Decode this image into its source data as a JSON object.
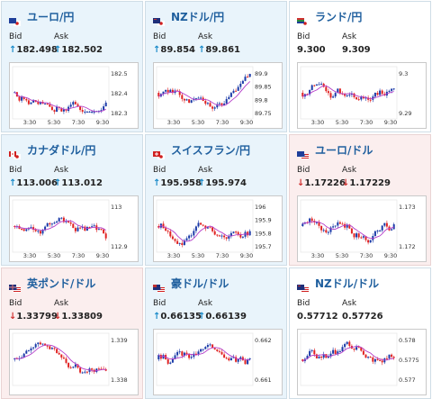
{
  "labels": {
    "bid": "Bid",
    "ask": "Ask"
  },
  "colors": {
    "up_arrow": "#1a8ac9",
    "down_arrow": "#d03030",
    "candle_up": "#1a3aa8",
    "candle_down": "#e02222",
    "ma_line": "#b43cc8",
    "title": "#1f5f9e"
  },
  "cards": [
    {
      "pair": "ユーロ/円",
      "flag": "eu-jp",
      "bid": "182.498",
      "ask": "182.502",
      "bid_dir": "up",
      "ask_dir": "up",
      "bg": "blue",
      "y_ticks": [
        "182.5",
        "182.4",
        "182.3"
      ],
      "x_ticks": [
        "3:30",
        "5:30",
        "7:30",
        "9:30"
      ]
    },
    {
      "pair": "NZドル/円",
      "flag": "nz-jp",
      "bid": "89.854",
      "ask": "89.861",
      "bid_dir": "up",
      "ask_dir": "up",
      "bg": "blue",
      "y_ticks": [
        "89.9",
        "89.85",
        "89.8",
        "89.75"
      ],
      "x_ticks": [
        "3:30",
        "5:30",
        "7:30",
        "9:30"
      ]
    },
    {
      "pair": "ランド/円",
      "flag": "za-jp",
      "bid": "9.300",
      "ask": "9.309",
      "bid_dir": "none",
      "ask_dir": "none",
      "bg": "white",
      "y_ticks": [
        "9.3",
        "9.29"
      ],
      "x_ticks": [
        "3:30",
        "5:30",
        "7:30",
        "9:30"
      ]
    },
    {
      "pair": "カナダドル/円",
      "flag": "ca-jp",
      "bid": "113.006",
      "ask": "113.012",
      "bid_dir": "up",
      "ask_dir": "up",
      "bg": "blue",
      "y_ticks": [
        "113",
        "112.9"
      ],
      "x_ticks": [
        "3:30",
        "5:30",
        "7:30",
        "9:30"
      ]
    },
    {
      "pair": "スイスフラン/円",
      "flag": "ch-jp",
      "bid": "195.958",
      "ask": "195.974",
      "bid_dir": "up",
      "ask_dir": "up",
      "bg": "blue",
      "y_ticks": [
        "196",
        "195.9",
        "195.8",
        "195.7"
      ],
      "x_ticks": [
        "3:30",
        "5:30",
        "7:30",
        "9:30"
      ]
    },
    {
      "pair": "ユーロ/ドル",
      "flag": "eu-us",
      "bid": "1.17226",
      "ask": "1.17229",
      "bid_dir": "down",
      "ask_dir": "down",
      "bg": "pink",
      "y_ticks": [
        "1.173",
        "1.172"
      ],
      "x_ticks": [
        "3:30",
        "5:30",
        "7:30",
        "9:30"
      ]
    },
    {
      "pair": "英ポンド/ドル",
      "flag": "gb-us",
      "bid": "1.33799",
      "ask": "1.33809",
      "bid_dir": "down",
      "ask_dir": "down",
      "bg": "pink",
      "y_ticks": [
        "1.339",
        "1.338"
      ],
      "x_ticks": []
    },
    {
      "pair": "豪ドル/ドル",
      "flag": "au-us",
      "bid": "0.66135",
      "ask": "0.66139",
      "bid_dir": "up",
      "ask_dir": "up",
      "bg": "blue",
      "y_ticks": [
        "0.662",
        "0.661"
      ],
      "x_ticks": []
    },
    {
      "pair": "NZドル/ドル",
      "flag": "nz-us",
      "bid": "0.57712",
      "ask": "0.57726",
      "bid_dir": "none",
      "ask_dir": "none",
      "bg": "white",
      "y_ticks": [
        "0.578",
        "0.5775",
        "0.577"
      ],
      "x_ticks": []
    }
  ]
}
